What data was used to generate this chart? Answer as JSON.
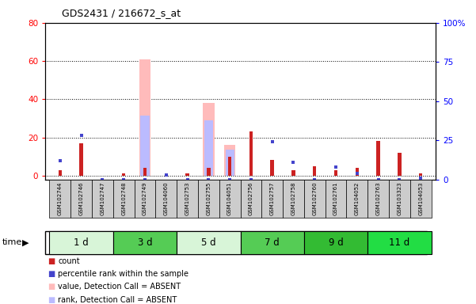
{
  "title": "GDS2431 / 216672_s_at",
  "samples": [
    "GSM102744",
    "GSM102746",
    "GSM102747",
    "GSM102748",
    "GSM102749",
    "GSM104060",
    "GSM102753",
    "GSM102755",
    "GSM104051",
    "GSM102756",
    "GSM102757",
    "GSM102758",
    "GSM102760",
    "GSM102761",
    "GSM104052",
    "GSM102763",
    "GSM103323",
    "GSM104053"
  ],
  "time_groups": [
    {
      "label": "1 d",
      "start": 0,
      "end": 3,
      "color": "#d8f5d8"
    },
    {
      "label": "3 d",
      "start": 3,
      "end": 6,
      "color": "#55cc55"
    },
    {
      "label": "5 d",
      "start": 6,
      "end": 9,
      "color": "#d8f5d8"
    },
    {
      "label": "7 d",
      "start": 9,
      "end": 12,
      "color": "#55cc55"
    },
    {
      "label": "9 d",
      "start": 12,
      "end": 15,
      "color": "#33bb33"
    },
    {
      "label": "11 d",
      "start": 15,
      "end": 18,
      "color": "#22dd44"
    }
  ],
  "count_values": [
    3,
    17,
    0,
    1,
    4,
    1,
    1,
    4,
    10,
    23,
    8,
    3,
    5,
    3,
    4,
    18,
    12,
    1
  ],
  "percentile_values": [
    12,
    28,
    0,
    0,
    0,
    3,
    0,
    0,
    0,
    0,
    24,
    11,
    0,
    8,
    4,
    0,
    0,
    1
  ],
  "absent_value_values": [
    0,
    0,
    0,
    0,
    61,
    0,
    0,
    38,
    16,
    0,
    0,
    0,
    0,
    0,
    0,
    0,
    0,
    0
  ],
  "absent_rank_values": [
    0,
    0,
    0,
    0,
    39,
    0,
    0,
    36,
    17,
    0,
    0,
    0,
    0,
    0,
    0,
    0,
    0,
    0
  ],
  "ylim_left": [
    -2,
    80
  ],
  "ylim_right": [
    0,
    100
  ],
  "yticks_left": [
    0,
    20,
    40,
    60,
    80
  ],
  "yticks_right": [
    0,
    25,
    50,
    75,
    100
  ],
  "ytick_labels_right": [
    "0",
    "25",
    "50",
    "75",
    "100%"
  ],
  "count_color": "#cc2222",
  "percentile_color": "#4444cc",
  "absent_value_color": "#ffbbbb",
  "absent_rank_color": "#bbbbff",
  "bar_width": 0.55
}
